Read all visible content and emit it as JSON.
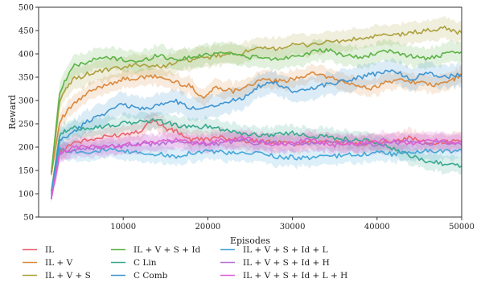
{
  "chart_data": {
    "type": "line",
    "xlabel": "Episodes",
    "ylabel": "Reward",
    "xlim": [
      0,
      50000
    ],
    "ylim": [
      50,
      500
    ],
    "x_ticks": [
      10000,
      20000,
      30000,
      40000,
      50000
    ],
    "x_tick_labels": [
      "10000",
      "20000",
      "30000",
      "40000",
      "50000"
    ],
    "y_ticks": [
      50,
      100,
      150,
      200,
      250,
      300,
      350,
      400,
      450,
      500
    ],
    "y_tick_labels": [
      "50",
      "100",
      "150",
      "200",
      "250",
      "300",
      "350",
      "400",
      "450",
      "500"
    ],
    "grid": false,
    "legend_position": "bottom",
    "series": [
      {
        "name": "IL",
        "color": "#e8636f",
        "x": [
          1500,
          2500,
          4000,
          6000,
          8000,
          10000,
          12000,
          13500,
          15000,
          16500,
          18000,
          20000,
          22000,
          24000,
          26000,
          28000,
          30000,
          32000,
          34000,
          36000,
          38000,
          40000,
          42000,
          44000,
          46000,
          48000,
          50000
        ],
        "y": [
          90,
          190,
          210,
          215,
          222,
          228,
          235,
          260,
          240,
          232,
          215,
          218,
          220,
          215,
          212,
          210,
          208,
          212,
          215,
          208,
          205,
          210,
          215,
          220,
          208,
          210,
          213
        ]
      },
      {
        "name": "IL + V",
        "color": "#d9893d",
        "x": [
          1500,
          2500,
          4000,
          6000,
          8000,
          10000,
          12000,
          14000,
          16000,
          18000,
          19500,
          21000,
          23000,
          25000,
          27000,
          29000,
          31000,
          33000,
          35000,
          37000,
          39000,
          41000,
          43000,
          45000,
          47000,
          49000,
          50000
        ],
        "y": [
          140,
          255,
          290,
          318,
          335,
          345,
          348,
          352,
          340,
          330,
          305,
          330,
          320,
          335,
          345,
          340,
          352,
          358,
          345,
          335,
          325,
          338,
          345,
          338,
          332,
          345,
          355
        ]
      },
      {
        "name": "IL + V + S",
        "color": "#aba03c",
        "x": [
          1500,
          2500,
          4000,
          6000,
          8000,
          10000,
          12000,
          14000,
          16000,
          18000,
          20000,
          22000,
          24000,
          26000,
          28000,
          30000,
          32000,
          34000,
          36000,
          38000,
          40000,
          42000,
          44000,
          46000,
          48000,
          50000
        ],
        "y": [
          145,
          300,
          345,
          358,
          365,
          370,
          378,
          372,
          380,
          388,
          392,
          398,
          402,
          410,
          412,
          418,
          420,
          425,
          428,
          432,
          438,
          440,
          445,
          450,
          455,
          445
        ]
      },
      {
        "name": "IL + V + S + Id",
        "color": "#5bb345",
        "x": [
          1500,
          2500,
          4000,
          6000,
          8000,
          10000,
          12000,
          14000,
          16000,
          18000,
          20000,
          22000,
          24000,
          26000,
          28000,
          30000,
          32000,
          34000,
          36000,
          38000,
          40000,
          42000,
          44000,
          46000,
          48000,
          50000
        ],
        "y": [
          145,
          320,
          372,
          385,
          392,
          388,
          382,
          398,
          388,
          392,
          398,
          405,
          395,
          392,
          388,
          395,
          402,
          408,
          398,
          392,
          402,
          405,
          395,
          390,
          398,
          405
        ]
      },
      {
        "name": "C Lin",
        "color": "#37a88e",
        "x": [
          1500,
          2500,
          4000,
          6000,
          8000,
          10000,
          12000,
          14000,
          16000,
          18000,
          20000,
          22000,
          24000,
          26000,
          28000,
          30000,
          32000,
          34000,
          36000,
          38000,
          40000,
          42000,
          44000,
          46000,
          48000,
          50000
        ],
        "y": [
          105,
          228,
          240,
          242,
          245,
          250,
          255,
          258,
          248,
          242,
          245,
          238,
          230,
          225,
          228,
          230,
          225,
          222,
          218,
          215,
          210,
          195,
          180,
          170,
          165,
          160
        ]
      },
      {
        "name": "C Comb",
        "color": "#3f94d1",
        "x": [
          1500,
          2500,
          4000,
          6000,
          8000,
          10000,
          12000,
          14000,
          16000,
          18000,
          20000,
          22000,
          24000,
          26000,
          28000,
          30000,
          32000,
          34000,
          36000,
          38000,
          40000,
          42000,
          44000,
          46000,
          48000,
          50000
        ],
        "y": [
          100,
          215,
          230,
          258,
          275,
          292,
          282,
          288,
          300,
          282,
          288,
          295,
          305,
          330,
          338,
          318,
          325,
          335,
          342,
          350,
          358,
          365,
          345,
          360,
          350,
          355
        ]
      },
      {
        "name": "IL + V + S + Id + L",
        "color": "#44a6d9",
        "x": [
          1500,
          2500,
          4000,
          6000,
          8000,
          10000,
          12000,
          14000,
          16000,
          18000,
          20000,
          22000,
          24000,
          26000,
          28000,
          30000,
          32000,
          34000,
          36000,
          38000,
          40000,
          42000,
          44000,
          46000,
          48000,
          50000
        ],
        "y": [
          95,
          195,
          192,
          190,
          195,
          190,
          188,
          185,
          180,
          188,
          192,
          188,
          185,
          188,
          180,
          178,
          176,
          180,
          182,
          185,
          188,
          185,
          190,
          192,
          190,
          195
        ]
      },
      {
        "name": "IL + V + S + Id + H",
        "color": "#b36ed6",
        "x": [
          1500,
          2500,
          4000,
          6000,
          8000,
          10000,
          12000,
          14000,
          16000,
          18000,
          20000,
          22000,
          24000,
          26000,
          28000,
          30000,
          32000,
          34000,
          36000,
          38000,
          40000,
          42000,
          44000,
          46000,
          48000,
          50000
        ],
        "y": [
          88,
          185,
          195,
          198,
          200,
          202,
          205,
          208,
          210,
          212,
          205,
          210,
          215,
          208,
          210,
          205,
          208,
          210,
          212,
          208,
          205,
          210,
          212,
          208,
          210,
          205
        ]
      },
      {
        "name": "IL + V + S + Id + L + H",
        "color": "#de5fd1",
        "x": [
          1500,
          2500,
          4000,
          6000,
          8000,
          10000,
          12000,
          14000,
          16000,
          18000,
          20000,
          22000,
          24000,
          26000,
          28000,
          30000,
          32000,
          34000,
          36000,
          38000,
          40000,
          42000,
          44000,
          46000,
          48000,
          50000
        ],
        "y": [
          90,
          190,
          198,
          202,
          200,
          205,
          208,
          212,
          215,
          210,
          208,
          215,
          220,
          212,
          205,
          210,
          215,
          208,
          202,
          210,
          215,
          212,
          208,
          215,
          212,
          210
        ]
      }
    ]
  }
}
